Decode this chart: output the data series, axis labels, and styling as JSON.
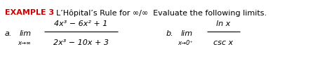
{
  "bg_color": "#ffffff",
  "example_label": "EXAMPLE 3",
  "title_text": "L’Hôpital’s Rule for ∞/∞  Evaluate the following limits.",
  "part_a_label": "a.",
  "part_a_lim_word": "lim",
  "part_a_lim_sub": "x→∞",
  "part_a_num": "4x³ − 6x² + 1",
  "part_a_den": "2x³ − 10x + 3",
  "part_b_label": "b.",
  "part_b_lim_word": "lim",
  "part_b_lim_sub": "x→0⁺",
  "part_b_num": "ln x",
  "part_b_den": "csc x",
  "red_color": "#cc0000",
  "black_color": "#000000"
}
